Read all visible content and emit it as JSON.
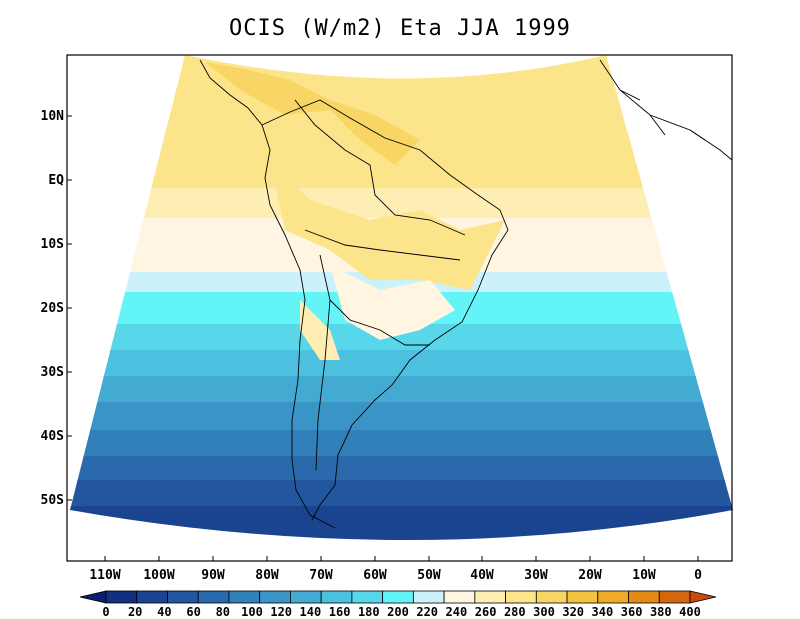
{
  "map": {
    "title": "OCIS (W/m2) Eta JJA 1999",
    "lat_labels": [
      "10N",
      "EQ",
      "10S",
      "20S",
      "30S",
      "40S",
      "50S"
    ],
    "lon_labels": [
      "110W",
      "100W",
      "90W",
      "80W",
      "70W",
      "60W",
      "50W",
      "40W",
      "30W",
      "20W",
      "10W",
      "0"
    ],
    "colorbar": {
      "levels": [
        "0",
        "20",
        "40",
        "60",
        "80",
        "100",
        "120",
        "140",
        "160",
        "180",
        "200",
        "220",
        "240",
        "260",
        "280",
        "300",
        "320",
        "340",
        "360",
        "380",
        "400"
      ],
      "colors": [
        "#0a1f6e",
        "#12307f",
        "#1a4490",
        "#22579f",
        "#2a6aac",
        "#3280b9",
        "#3a95c6",
        "#43abd2",
        "#4cc0de",
        "#58d6ea",
        "#63f4f7",
        "#cbf2fb",
        "#fff5e0",
        "#ffeeb3",
        "#fce48a",
        "#f8d565",
        "#f4c241",
        "#eeaa29",
        "#e48b17",
        "#d56610",
        "#c84b0c"
      ]
    }
  }
}
